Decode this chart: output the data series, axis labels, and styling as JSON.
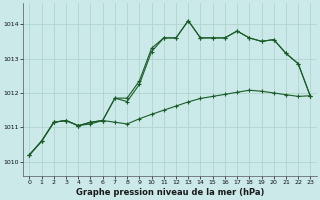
{
  "title": "Graphe pression niveau de la mer (hPa)",
  "background_color": "#cbe9e9",
  "grid_color": "#b0d4cc",
  "line_color": "#1a5c28",
  "xlim": [
    -0.5,
    23.5
  ],
  "ylim": [
    1009.6,
    1014.6
  ],
  "yticks": [
    1010,
    1011,
    1012,
    1013,
    1014
  ],
  "xticks": [
    0,
    1,
    2,
    3,
    4,
    5,
    6,
    7,
    8,
    9,
    10,
    11,
    12,
    13,
    14,
    15,
    16,
    17,
    18,
    19,
    20,
    21,
    22,
    23
  ],
  "hours": [
    0,
    1,
    2,
    3,
    4,
    5,
    6,
    7,
    8,
    9,
    10,
    11,
    12,
    13,
    14,
    15,
    16,
    17,
    18,
    19,
    20,
    21,
    22,
    23
  ],
  "line1": [
    1010.2,
    1010.6,
    1011.15,
    1011.2,
    1011.05,
    1011.15,
    1011.2,
    1011.85,
    1011.75,
    1012.25,
    1013.2,
    1013.6,
    1013.6,
    1014.1,
    1013.6,
    1013.6,
    1013.6,
    1013.8,
    1013.6,
    1013.5,
    1013.55,
    1013.15,
    1012.85,
    1011.9
  ],
  "line2": [
    1010.2,
    1010.6,
    1011.15,
    1011.2,
    1011.05,
    1011.15,
    1011.2,
    1011.85,
    1011.85,
    1012.35,
    1013.3,
    1013.6,
    1013.6,
    1014.1,
    1013.6,
    1013.6,
    1013.6,
    1013.8,
    1013.6,
    1013.5,
    1013.55,
    1013.15,
    1012.85,
    1011.9
  ],
  "line3": [
    1010.2,
    1010.6,
    1011.15,
    1011.2,
    1011.05,
    1011.1,
    1011.2,
    1011.15,
    1011.1,
    1011.25,
    1011.38,
    1011.5,
    1011.62,
    1011.74,
    1011.84,
    1011.9,
    1011.96,
    1012.02,
    1012.08,
    1012.05,
    1012.0,
    1011.95,
    1011.9,
    1011.92
  ]
}
